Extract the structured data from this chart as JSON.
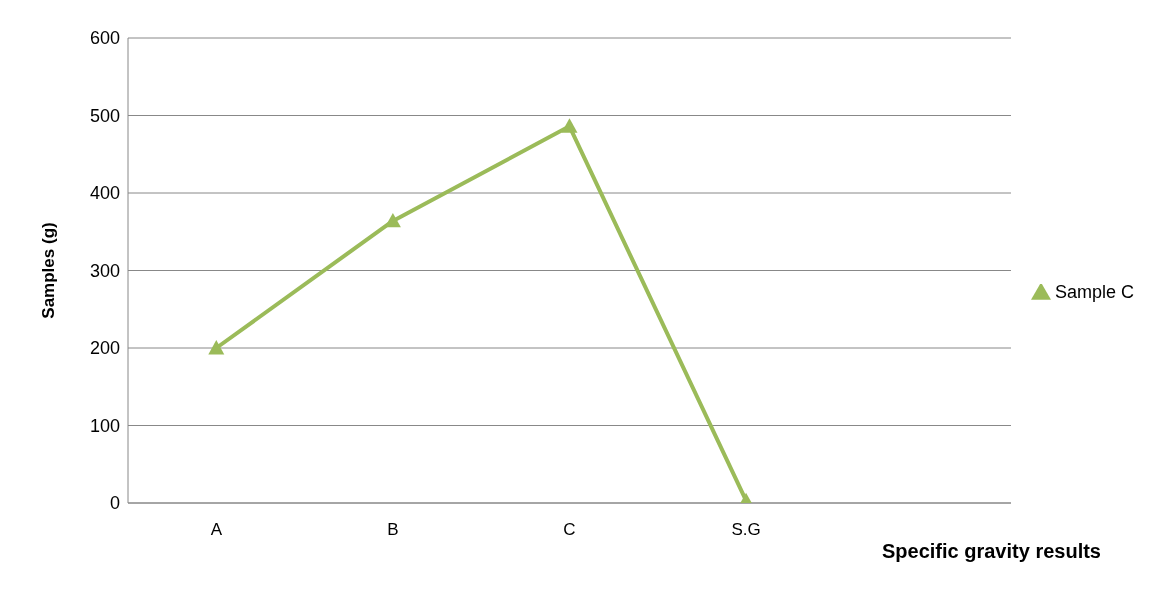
{
  "chart_data": {
    "type": "line",
    "xlabel": "Specific gravity results",
    "ylabel": "Samples (g)",
    "categories": [
      "A",
      "B",
      "C",
      "S.G",
      null
    ],
    "series": [
      {
        "name": "Sample C",
        "color": "#9bbb59",
        "values": [
          200,
          364,
          486,
          3,
          null
        ]
      }
    ],
    "ylim": [
      0,
      600
    ],
    "yticks": [
      0,
      100,
      200,
      300,
      400,
      500,
      600
    ],
    "grid": "y",
    "legend": "right",
    "marker": "triangle",
    "line_style": "solid"
  }
}
